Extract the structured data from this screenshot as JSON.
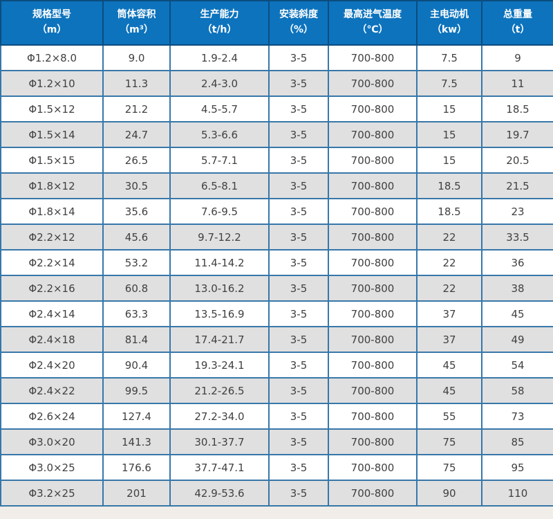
{
  "page": {
    "background_color": "#f1ede9"
  },
  "table": {
    "name": "dryer-specification-table",
    "colors": {
      "header_background": "#0d73bd",
      "header_text": "#ffffff",
      "header_border": "#0b4d7f",
      "body_border": "#3677a9",
      "row_alternate": "#e0e0e0",
      "row_default": "#ffffff",
      "body_text": "#404040"
    },
    "columns": [
      {
        "title": "规格型号",
        "unit": "（m）"
      },
      {
        "title": "筒体容积",
        "unit": "（m³）"
      },
      {
        "title": "生产能力",
        "unit": "（t/h）"
      },
      {
        "title": "安装斜度",
        "unit": "（%）"
      },
      {
        "title": "最高进气温度",
        "unit": "（℃）"
      },
      {
        "title": "主电动机",
        "unit": "（kw）"
      },
      {
        "title": "总重量",
        "unit": "（t）"
      }
    ],
    "rows": [
      [
        "Φ1.2×8.0",
        "9.0",
        "1.9-2.4",
        "3-5",
        "700-800",
        "7.5",
        "9"
      ],
      [
        "Φ1.2×10",
        "11.3",
        "2.4-3.0",
        "3-5",
        "700-800",
        "7.5",
        "11"
      ],
      [
        "Φ1.5×12",
        "21.2",
        "4.5-5.7",
        "3-5",
        "700-800",
        "15",
        "18.5"
      ],
      [
        "Φ1.5×14",
        "24.7",
        "5.3-6.6",
        "3-5",
        "700-800",
        "15",
        "19.7"
      ],
      [
        "Φ1.5×15",
        "26.5",
        "5.7-7.1",
        "3-5",
        "700-800",
        "15",
        "20.5"
      ],
      [
        "Φ1.8×12",
        "30.5",
        "6.5-8.1",
        "3-5",
        "700-800",
        "18.5",
        "21.5"
      ],
      [
        "Φ1.8×14",
        "35.6",
        "7.6-9.5",
        "3-5",
        "700-800",
        "18.5",
        "23"
      ],
      [
        "Φ2.2×12",
        "45.6",
        "9.7-12.2",
        "3-5",
        "700-800",
        "22",
        "33.5"
      ],
      [
        "Φ2.2×14",
        "53.2",
        "11.4-14.2",
        "3-5",
        "700-800",
        "22",
        "36"
      ],
      [
        "Φ2.2×16",
        "60.8",
        "13.0-16.2",
        "3-5",
        "700-800",
        "22",
        "38"
      ],
      [
        "Φ2.4×14",
        "63.3",
        "13.5-16.9",
        "3-5",
        "700-800",
        "37",
        "45"
      ],
      [
        "Φ2.4×18",
        "81.4",
        "17.4-21.7",
        "3-5",
        "700-800",
        "37",
        "49"
      ],
      [
        "Φ2.4×20",
        "90.4",
        "19.3-24.1",
        "3-5",
        "700-800",
        "45",
        "54"
      ],
      [
        "Φ2.4×22",
        "99.5",
        "21.2-26.5",
        "3-5",
        "700-800",
        "45",
        "58"
      ],
      [
        "Φ2.6×24",
        "127.4",
        "27.2-34.0",
        "3-5",
        "700-800",
        "55",
        "73"
      ],
      [
        "Φ3.0×20",
        "141.3",
        "30.1-37.7",
        "3-5",
        "700-800",
        "75",
        "85"
      ],
      [
        "Φ3.0×25",
        "176.6",
        "37.7-47.1",
        "3-5",
        "700-800",
        "75",
        "95"
      ],
      [
        "Φ3.2×25",
        "201",
        "42.9-53.6",
        "3-5",
        "700-800",
        "90",
        "110"
      ]
    ]
  }
}
